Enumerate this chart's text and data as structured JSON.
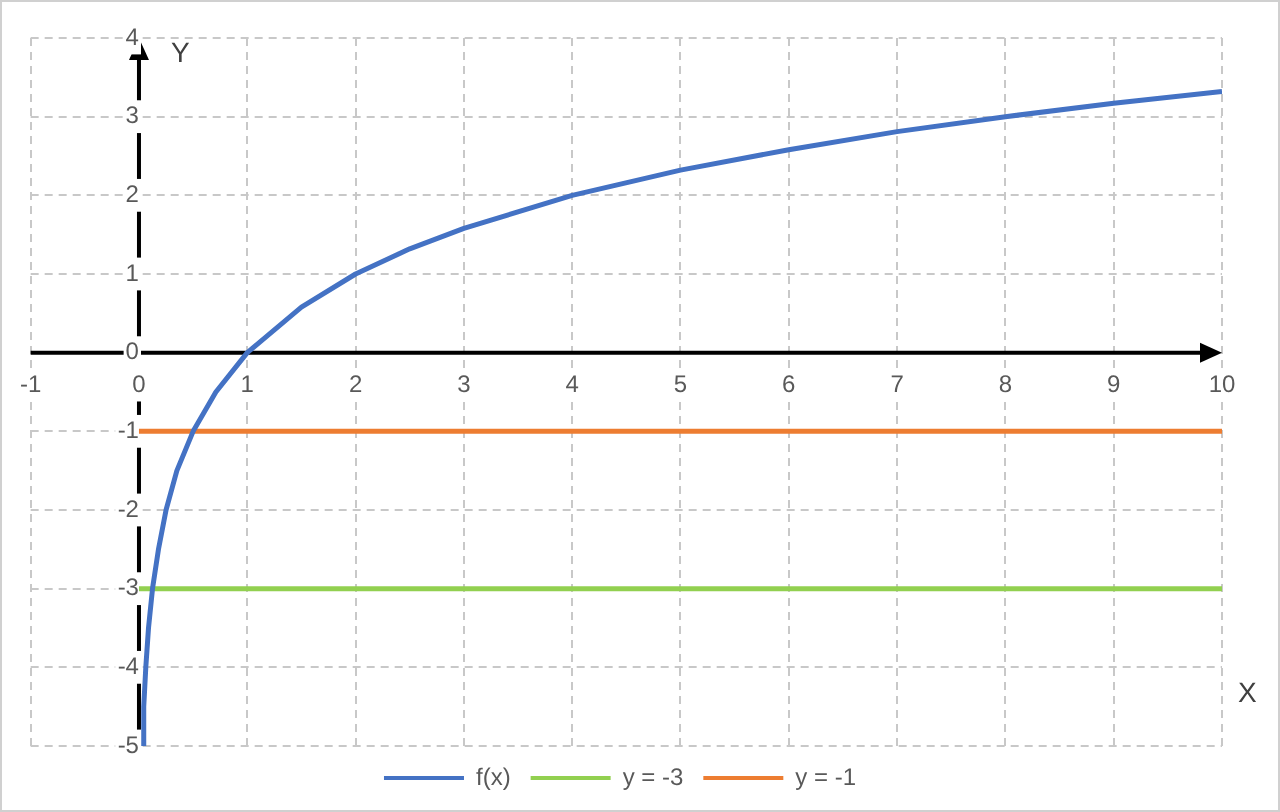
{
  "chart_data": {
    "type": "line",
    "xlabel": "X",
    "ylabel": "Y",
    "xlim": [
      -1,
      10
    ],
    "ylim": [
      -5,
      4
    ],
    "xticks": [
      -1,
      0,
      1,
      2,
      3,
      4,
      5,
      6,
      7,
      8,
      9,
      10
    ],
    "yticks": [
      -5,
      -4,
      -3,
      -2,
      -1,
      0,
      1,
      2,
      3,
      4
    ],
    "grid": true,
    "legend": "bottom",
    "marker": "none",
    "line_style": "solid",
    "series": [
      {
        "name": "f(x)",
        "color": "#4472c4",
        "x": [
          0.031,
          0.044,
          0.063,
          0.088,
          0.125,
          0.18,
          0.25,
          0.35,
          0.5,
          0.71,
          1,
          1.5,
          2,
          2.5,
          3,
          4,
          5,
          6,
          7,
          8,
          9,
          10
        ],
        "values": [
          -5,
          -4.5,
          -4,
          -3.5,
          -3,
          -2.5,
          -2,
          -1.5,
          -1,
          -0.5,
          0,
          0.58,
          1,
          1.32,
          1.58,
          2,
          2.32,
          2.58,
          2.81,
          3,
          3.17,
          3.32
        ]
      },
      {
        "name": "y = -3",
        "color": "#92d050",
        "x": [
          0,
          10
        ],
        "values": [
          -3,
          -3
        ]
      },
      {
        "name": "y = -1",
        "color": "#ed7d31",
        "x": [
          0,
          10
        ],
        "values": [
          -1,
          -1
        ]
      }
    ]
  }
}
